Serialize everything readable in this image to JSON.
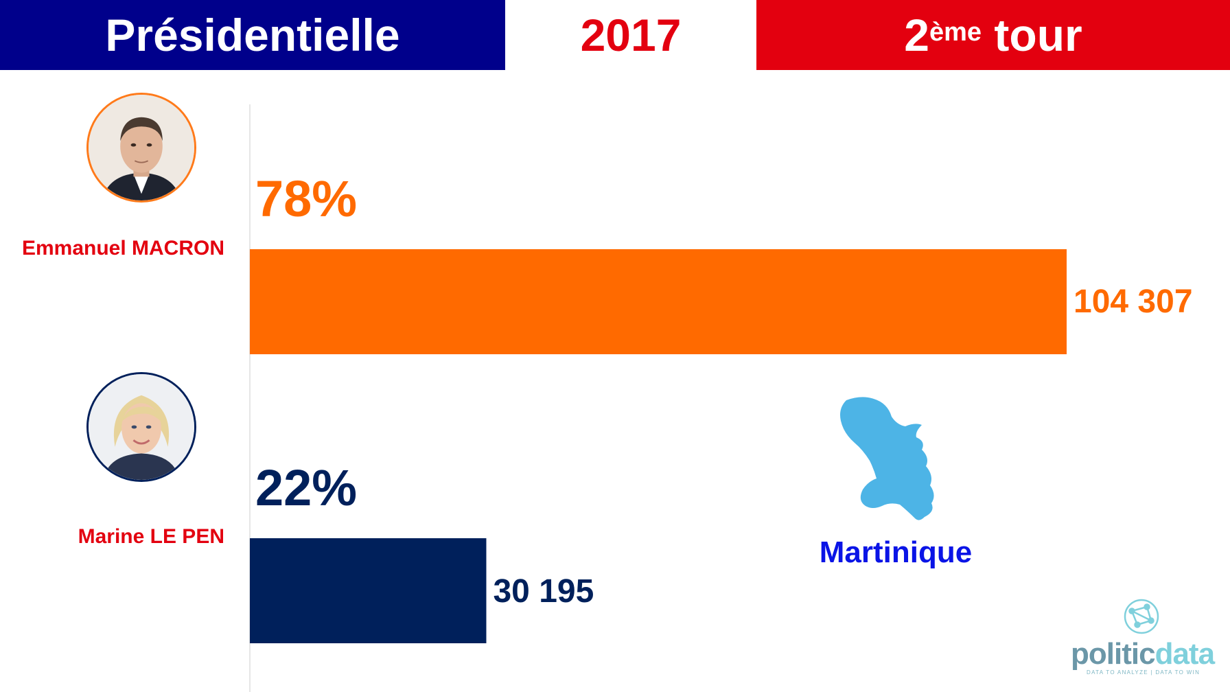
{
  "header": {
    "left": "Présidentielle",
    "year": "2017",
    "round_num": "2",
    "round_sup": "ème",
    "round_word": "tour"
  },
  "colors": {
    "macron": "#ff6a00",
    "lepen": "#00205b",
    "banner_blue": "#00008b",
    "banner_red": "#e3000f",
    "region": "#0a14e6",
    "map": "#4db4e6"
  },
  "chart_data": {
    "type": "bar",
    "orientation": "horizontal",
    "categories": [
      "Emmanuel MACRON",
      "Marine LE PEN"
    ],
    "values": [
      104307,
      30195
    ],
    "percent_labels": [
      "78%",
      "22%"
    ],
    "value_labels": [
      "104 307",
      "30 195"
    ],
    "colors": [
      "#ff6a00",
      "#00205b"
    ],
    "xlim": [
      0,
      104307
    ],
    "grid": false
  },
  "region": "Martinique",
  "logo": {
    "name_part1": "politic",
    "name_part2": "data",
    "tagline": "DATA TO ANALYZE | DATA TO WIN"
  }
}
